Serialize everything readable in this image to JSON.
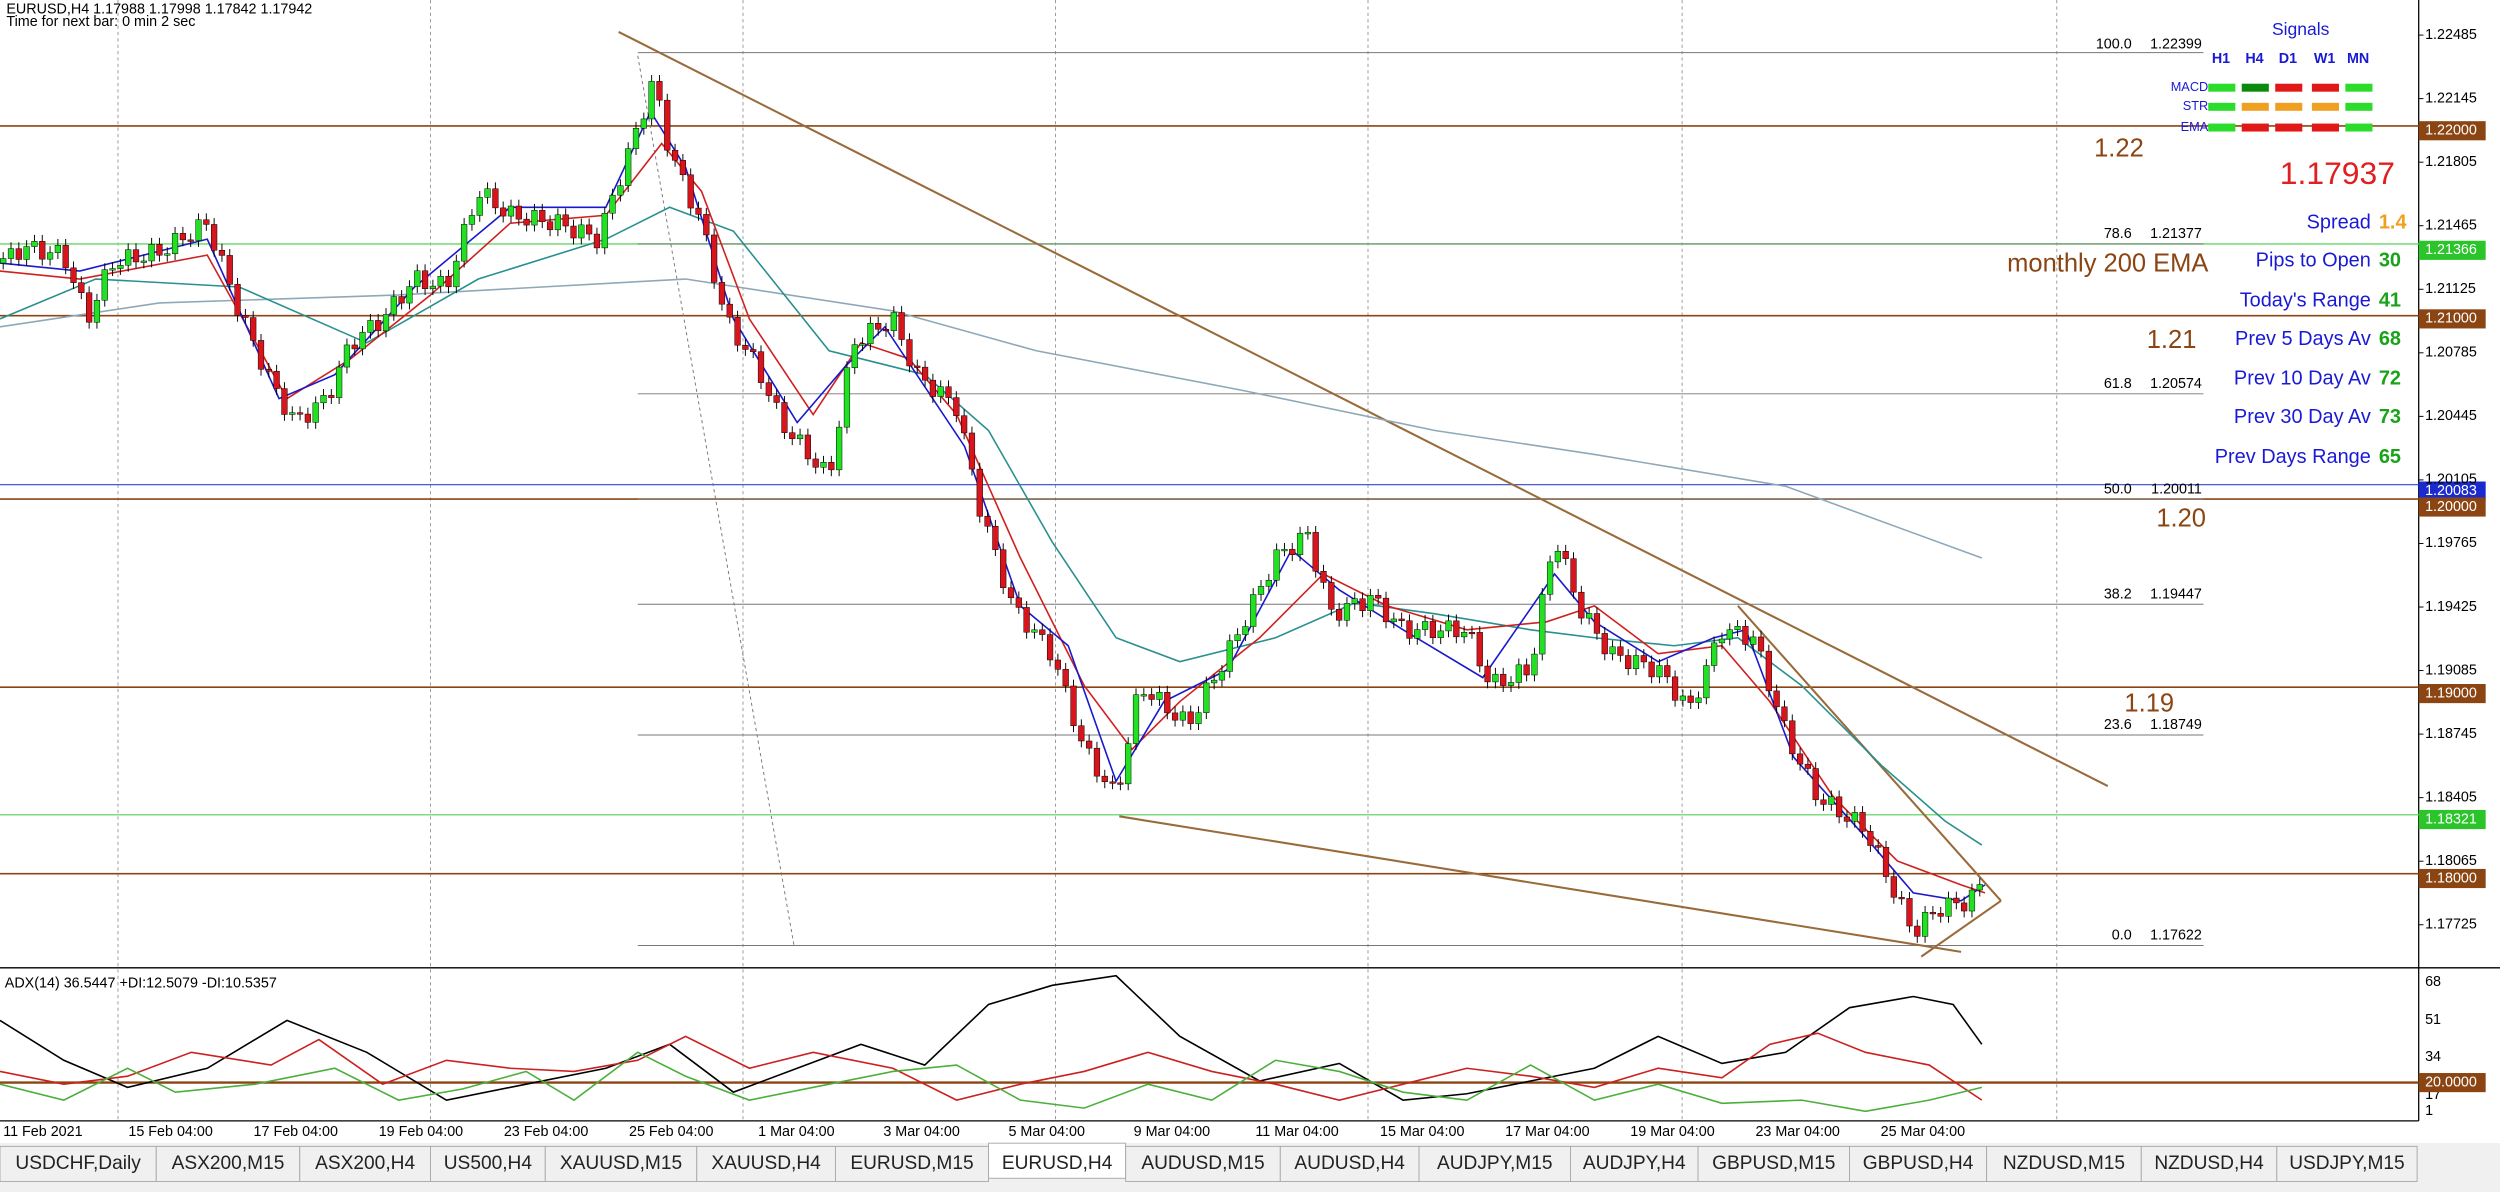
{
  "header": {
    "symbol": "EURUSD,H4  1.17988 1.17998 1.17842 1.17942",
    "timer": "Time for next bar: 0 min 2 sec"
  },
  "price_axis": [
    "1.22485",
    "1.22145",
    "1.21805",
    "1.21465",
    "1.21125",
    "1.20785",
    "1.20445",
    "1.20105",
    "1.19765",
    "1.19425",
    "1.19085",
    "1.18745",
    "1.18405",
    "1.18065",
    "1.17725"
  ],
  "price_tags": [
    "1.22000",
    "1.21366",
    "1.21000",
    "1.20083",
    "1.20000",
    "1.19000",
    "1.18321",
    "1.18000"
  ],
  "fib_levels": [
    {
      "level": "100.0",
      "price": "1.22399"
    },
    {
      "level": "78.6",
      "price": "1.21377"
    },
    {
      "level": "61.8",
      "price": "1.20574"
    },
    {
      "level": "50.0",
      "price": "1.20011"
    },
    {
      "level": "38.2",
      "price": "1.19447"
    },
    {
      "level": "23.6",
      "price": "1.18749"
    },
    {
      "level": "0.0",
      "price": "1.17622"
    }
  ],
  "annotations": {
    "level_122": "1.22",
    "level_121": "1.21",
    "level_120": "1.20",
    "level_119": "1.19",
    "ema_note": "monthly 200 EMA",
    "bid": "1.17937"
  },
  "signals": {
    "title": "Signals",
    "columns": [
      "H1",
      "H4",
      "D1",
      "W1",
      "MN"
    ],
    "rows": [
      "MACD",
      "STR",
      "EMA"
    ]
  },
  "stats": [
    {
      "label": "Spread",
      "value": 1.4
    },
    {
      "label": "Pips to Open",
      "value": 30
    },
    {
      "label": "Today's Range",
      "value": 41
    },
    {
      "label": "Prev 5 Days Av",
      "value": 68
    },
    {
      "label": "Prev 10 Day Av",
      "value": 72
    },
    {
      "label": "Prev 30 Day Av",
      "value": 73
    },
    {
      "label": "Prev Days Range",
      "value": 65
    }
  ],
  "indicator": {
    "title": "ADX(14) 36.5447 +DI:12.5079 -DI:10.5357",
    "axis": [
      "68",
      "51",
      "34",
      "17",
      "1"
    ],
    "level_tag": "20.0000"
  },
  "time_axis": [
    "11 Feb 2021",
    "15 Feb 04:00",
    "17 Feb 04:00",
    "19 Feb 04:00",
    "23 Feb 04:00",
    "25 Feb 04:00",
    "1 Mar 04:00",
    "3 Mar 04:00",
    "5 Mar 04:00",
    "9 Mar 04:00",
    "11 Mar 04:00",
    "15 Mar 04:00",
    "17 Mar 04:00",
    "19 Mar 04:00",
    "23 Mar 04:00",
    "25 Mar 04:00"
  ],
  "tabs": [
    "USDCHF,Daily",
    "ASX200,M15",
    "ASX200,H4",
    "US500,H4",
    "XAUUSD,M15",
    "XAUUSD,H4",
    "EURUSD,M15",
    "EURUSD,H4",
    "AUDUSD,M15",
    "AUDUSD,H4",
    "AUDJPY,M15",
    "AUDJPY,H4",
    "GBPUSD,M15",
    "GBPUSD,H4",
    "NZDUSD,M15",
    "NZDUSD,H4",
    "USDJPY,M15"
  ]
}
